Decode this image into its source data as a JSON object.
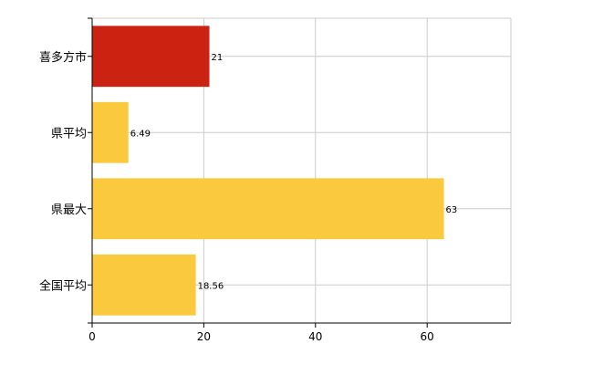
{
  "chart_data": {
    "type": "bar",
    "orientation": "horizontal",
    "categories": [
      "喜多方市",
      "県平均",
      "県最大",
      "全国平均"
    ],
    "values": [
      21,
      6.49,
      63,
      18.56
    ],
    "value_labels": [
      "21",
      "6.49",
      "63",
      "18.56"
    ],
    "xlim": [
      0,
      75
    ],
    "x_ticks": [
      0,
      20,
      40,
      60
    ],
    "x_tick_labels": [
      "0",
      "20",
      "40",
      "60"
    ],
    "grid": true,
    "colors": [
      "#cc2211",
      "#fbc93d",
      "#fbc93d",
      "#fbc93d"
    ]
  }
}
